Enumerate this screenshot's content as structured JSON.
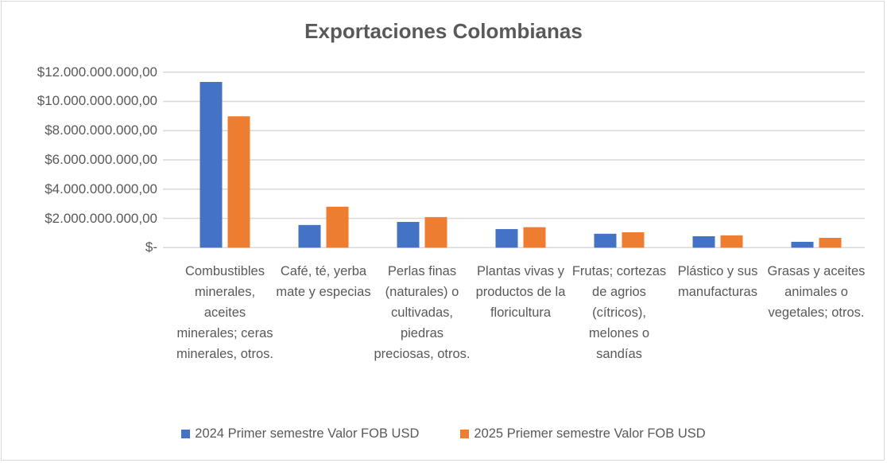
{
  "chart_data": {
    "type": "bar",
    "title": "Exportaciones Colombianas",
    "xlabel": "",
    "ylabel": "",
    "ylim": [
      0,
      12000000000
    ],
    "ytick_values": [
      0,
      2000000000,
      4000000000,
      6000000000,
      8000000000,
      10000000000,
      12000000000
    ],
    "ytick_labels": [
      "$-",
      "$2.000.000.000,00",
      "$4.000.000.000,00",
      "$6.000.000.000,00",
      "$8.000.000.000,00",
      "$10.000.000.000,00",
      "$12.000.000.000,00"
    ],
    "grid": true,
    "legend_position": "bottom",
    "categories": [
      "Combustibles minerales, aceites minerales; ceras minerales, otros.",
      "Café, té, yerba mate y especias",
      "Perlas finas (naturales) o cultivadas, piedras preciosas, otros.",
      "Plantas vivas y productos de la floricultura",
      "Frutas; cortezas de agrios (cítricos), melones o sandías",
      "Plástico y sus manufacturas",
      "Grasas y aceites animales o vegetales; otros."
    ],
    "series": [
      {
        "name": "2024 Primer semestre Valor FOB USD",
        "color": "#4472c4",
        "values": [
          11330000000,
          1550000000,
          1760000000,
          1270000000,
          950000000,
          780000000,
          400000000
        ]
      },
      {
        "name": "2025 Priemer semestre Valor FOB USD",
        "color": "#ed7d31",
        "values": [
          8980000000,
          2800000000,
          2090000000,
          1400000000,
          1050000000,
          840000000,
          670000000
        ]
      }
    ]
  }
}
